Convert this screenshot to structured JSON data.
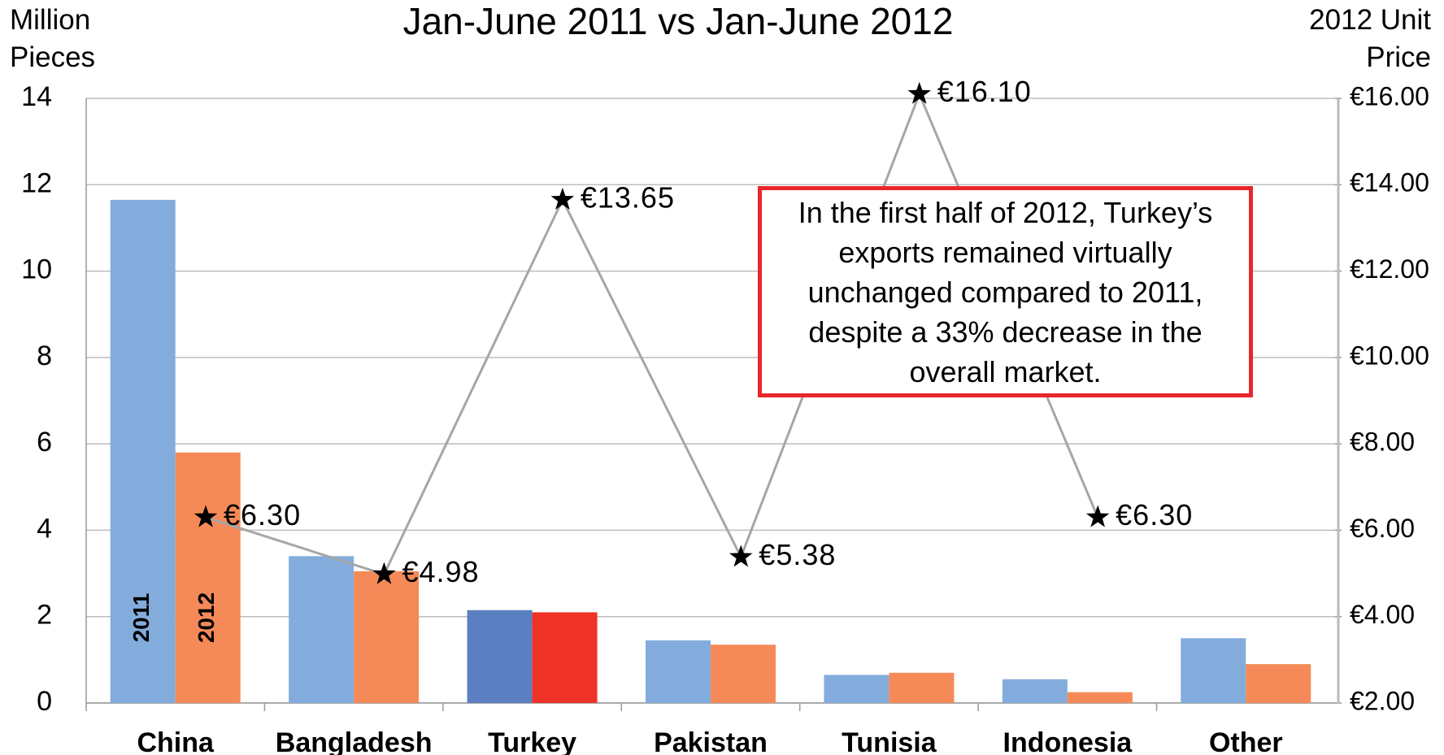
{
  "chart_data": {
    "type": "bar",
    "title": "Jan-June 2011 vs Jan-June 2012",
    "ylabel": "Million Pieces",
    "y2label": "2012 Unit Price",
    "annotation": "In the first half of 2012, Turkey’s exports remained virtually unchanged compared to 2011, despite a 33% decrease in the overall market.",
    "categories": [
      "China",
      "Bangladesh",
      "Turkey",
      "Pakistan",
      "Tunisia",
      "Indonesia",
      "Other"
    ],
    "series": [
      {
        "name": "2011",
        "color": "#83acdc",
        "colors": [
          "#83acdc",
          "#83acdc",
          "#5b7fc0",
          "#83acdc",
          "#83acdc",
          "#83acdc",
          "#83acdc"
        ],
        "values": [
          11.65,
          3.4,
          2.15,
          1.45,
          0.65,
          0.55,
          1.5
        ]
      },
      {
        "name": "2012",
        "color": "#f58a58",
        "colors": [
          "#f58a58",
          "#f58a58",
          "#ee3227",
          "#f58a58",
          "#f58a58",
          "#f58a58",
          "#f58a58"
        ],
        "values": [
          5.8,
          3.05,
          2.1,
          1.35,
          0.7,
          0.25,
          0.9
        ]
      },
      {
        "type": "line",
        "axis": "y2",
        "color": "#a6a6a6",
        "values": [
          6.3,
          4.98,
          13.65,
          5.38,
          16.1,
          6.3,
          null
        ],
        "value_labels": [
          "€6.30",
          "€4.98",
          "€13.65",
          "€5.38",
          "€16.10",
          "€6.30",
          null
        ]
      }
    ],
    "ylim": [
      0,
      14
    ],
    "yticks": [
      0,
      2,
      4,
      6,
      8,
      10,
      12,
      14
    ],
    "y2lim": [
      2,
      16
    ],
    "y2ticks": [
      {
        "value": 2,
        "label": "€2.00"
      },
      {
        "value": 4,
        "label": "€4.00"
      },
      {
        "value": 6,
        "label": "€6.00"
      },
      {
        "value": 8,
        "label": "€8.00"
      },
      {
        "value": 10,
        "label": "€10.00"
      },
      {
        "value": 12,
        "label": "€12.00"
      },
      {
        "value": 14,
        "label": "€14.00"
      },
      {
        "value": 16,
        "label": "€16.00"
      }
    ],
    "grid": true
  }
}
